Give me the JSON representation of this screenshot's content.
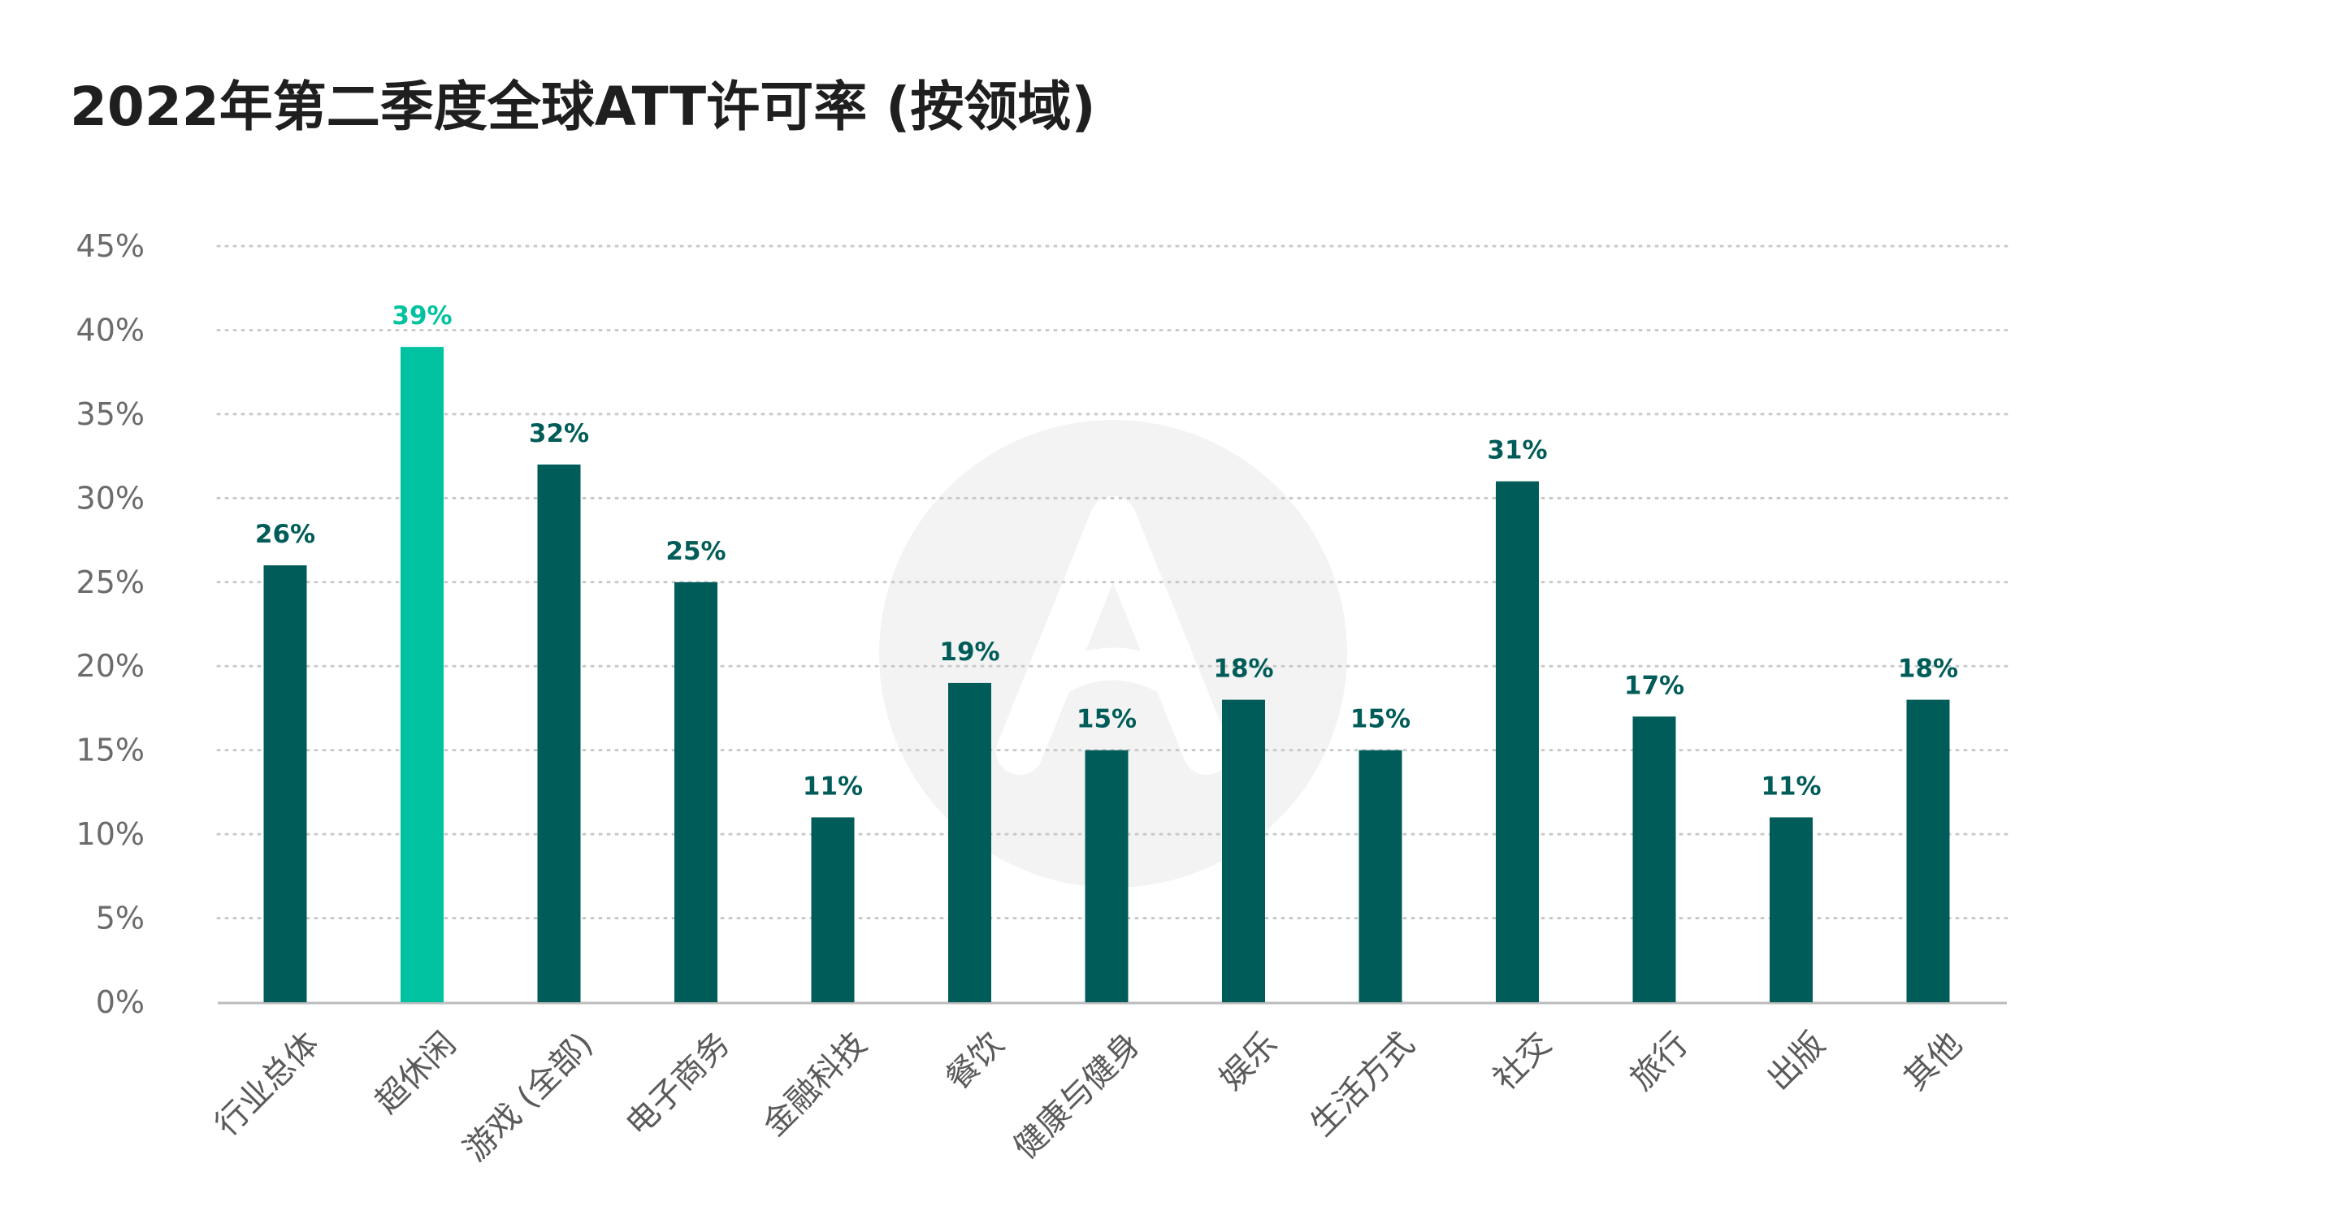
{
  "chart_data": {
    "type": "bar",
    "title": "2022年第二季度全球ATT许可率 (按领域)",
    "xlabel": "",
    "ylabel": "",
    "categories": [
      "行业总体",
      "超休闲",
      "游戏 (全部)",
      "电子商务",
      "金融科技",
      "餐饮",
      "健康与健身",
      "娱乐",
      "生活方式",
      "社交",
      "旅行",
      "出版",
      "其他"
    ],
    "values": [
      26,
      39,
      32,
      25,
      11,
      19,
      15,
      18,
      15,
      31,
      17,
      11,
      18
    ],
    "data_labels": [
      "26%",
      "39%",
      "32%",
      "25%",
      "11%",
      "19%",
      "15%",
      "18%",
      "15%",
      "31%",
      "17%",
      "11%",
      "18%"
    ],
    "highlight_index": 1,
    "ylim": [
      0,
      45
    ],
    "yticks": [
      0,
      5,
      10,
      15,
      20,
      25,
      30,
      35,
      40,
      45
    ],
    "ytick_labels": [
      "0%",
      "5%",
      "10%",
      "15%",
      "20%",
      "25%",
      "30%",
      "35%",
      "40%",
      "45%"
    ],
    "grid": "horizontal-dotted",
    "colors": {
      "bar": "#005c58",
      "highlight": "#00c2a0",
      "grid": "#c9c9c9",
      "axis": "#bbbbbb",
      "watermark": "#f3f3f3"
    },
    "watermark_icon": "applovin-logo-icon"
  }
}
